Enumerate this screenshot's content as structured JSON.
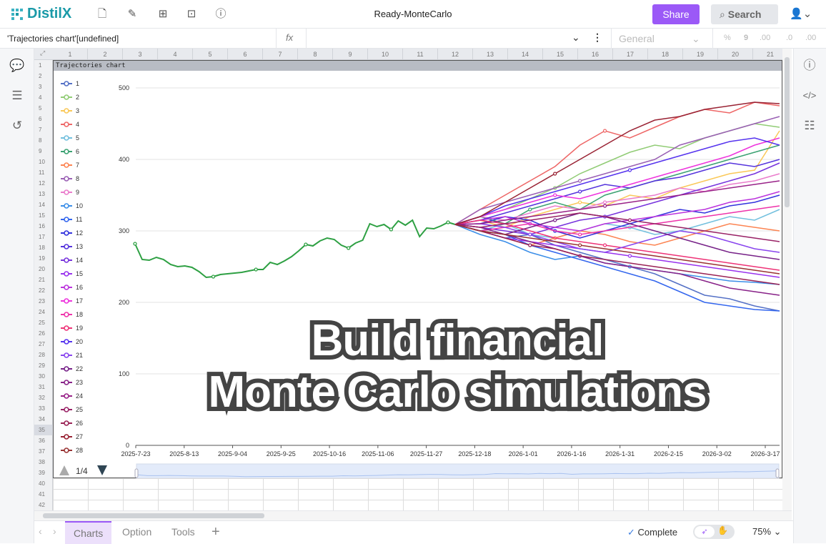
{
  "app": {
    "brand": "DistilX",
    "doc_title": "Ready-MonteCarlo",
    "share_label": "Share",
    "search_label": "Search"
  },
  "toolbar_icons": [
    "file-icon",
    "edit-icon",
    "layout-icon",
    "add-box-icon",
    "help-icon"
  ],
  "formula_bar": {
    "name_box": "'Trajectories chart'[undefined]",
    "fx_label": "fx",
    "formula": "",
    "format": "General",
    "number_buttons": [
      "%",
      "9",
      ".00",
      ".0",
      ".00"
    ]
  },
  "columns": [
    "1",
    "2",
    "3",
    "4",
    "5",
    "6",
    "7",
    "8",
    "9",
    "10",
    "11",
    "12",
    "13",
    "14",
    "15",
    "16",
    "17",
    "18",
    "19",
    "20",
    "21"
  ],
  "rows": [
    "1",
    "2",
    "3",
    "4",
    "5",
    "6",
    "7",
    "8",
    "9",
    "10",
    "11",
    "12",
    "13",
    "14",
    "15",
    "16",
    "17",
    "18",
    "19",
    "20",
    "21",
    "22",
    "23",
    "24",
    "25",
    "26",
    "27",
    "28",
    "29",
    "30",
    "31",
    "32",
    "33",
    "34",
    "35",
    "36",
    "37",
    "38",
    "39",
    "40",
    "41",
    "42"
  ],
  "selected_row": "35",
  "bottom": {
    "tabs": [
      "Charts",
      "Option",
      "Tools"
    ],
    "active_tab": "Charts",
    "add_label": "+",
    "status": "Complete",
    "zoom": "75%"
  },
  "overlay": {
    "line1": "Build financial",
    "line2": "Monte Carlo simulations"
  },
  "chart_data": {
    "type": "line",
    "title": "Trajectories chart",
    "ylim": [
      0,
      500
    ],
    "yticks": [
      0,
      100,
      200,
      300,
      400,
      500
    ],
    "grid": true,
    "legend_placement": "left",
    "legend_page": "1/4",
    "x_tick_labels": [
      "2025-7-23",
      "2025-8-13",
      "2025-9-04",
      "2025-9-25",
      "2025-10-16",
      "2025-11-06",
      "2025-11-27",
      "2025-12-18",
      "2026-1-01",
      "2026-1-16",
      "2026-1-31",
      "2026-2-15",
      "2026-3-02",
      "2026-3-17"
    ],
    "historical": {
      "color": "#2ea043",
      "values": [
        282,
        260,
        259,
        263,
        260,
        253,
        250,
        251,
        249,
        243,
        235,
        236,
        239,
        240,
        241,
        242,
        244,
        246,
        246,
        256,
        253,
        258,
        264,
        272,
        281,
        279,
        286,
        290,
        288,
        280,
        276,
        283,
        287,
        310,
        306,
        309,
        302,
        314,
        308,
        315,
        292,
        304,
        303,
        307,
        312,
        309
      ]
    },
    "series": [
      {
        "name": "1",
        "color": "#5470c6",
        "values": [
          309,
          300,
          290,
          295,
          280,
          270,
          260,
          250,
          240,
          225,
          210,
          205,
          195,
          188
        ]
      },
      {
        "name": "2",
        "color": "#91cc75",
        "values": [
          309,
          320,
          330,
          345,
          360,
          380,
          395,
          410,
          420,
          415,
          430,
          440,
          450,
          445
        ]
      },
      {
        "name": "3",
        "color": "#fac858",
        "values": [
          309,
          315,
          305,
          320,
          330,
          340,
          335,
          350,
          345,
          360,
          370,
          380,
          385,
          440
        ]
      },
      {
        "name": "4",
        "color": "#ee6666",
        "values": [
          309,
          330,
          350,
          370,
          390,
          420,
          440,
          430,
          445,
          460,
          470,
          465,
          480,
          475
        ]
      },
      {
        "name": "5",
        "color": "#73c0de",
        "values": [
          309,
          300,
          310,
          295,
          290,
          300,
          310,
          305,
          295,
          300,
          310,
          320,
          315,
          330
        ]
      },
      {
        "name": "6",
        "color": "#3ba272",
        "values": [
          309,
          320,
          310,
          330,
          340,
          330,
          350,
          360,
          370,
          380,
          390,
          400,
          410,
          420
        ]
      },
      {
        "name": "7",
        "color": "#fc8452",
        "values": [
          309,
          300,
          290,
          280,
          290,
          300,
          295,
          285,
          280,
          290,
          300,
          310,
          305,
          300
        ]
      },
      {
        "name": "8",
        "color": "#9a60b4",
        "values": [
          309,
          330,
          340,
          350,
          360,
          370,
          380,
          390,
          400,
          420,
          430,
          440,
          450,
          460
        ]
      },
      {
        "name": "9",
        "color": "#ea7ccc",
        "values": [
          309,
          320,
          315,
          325,
          335,
          330,
          340,
          345,
          350,
          360,
          355,
          365,
          370,
          380
        ]
      },
      {
        "name": "10",
        "color": "#3b8ee8",
        "values": [
          309,
          295,
          285,
          270,
          260,
          265,
          255,
          250,
          245,
          240,
          235,
          230,
          228,
          225
        ]
      },
      {
        "name": "11",
        "color": "#3366ee",
        "values": [
          309,
          300,
          295,
          280,
          270,
          260,
          250,
          240,
          230,
          215,
          200,
          195,
          190,
          188
        ]
      },
      {
        "name": "12",
        "color": "#3333dd",
        "values": [
          309,
          310,
          320,
          315,
          300,
          290,
          300,
          310,
          320,
          330,
          325,
          335,
          340,
          350
        ]
      },
      {
        "name": "13",
        "color": "#5533dd",
        "values": [
          309,
          315,
          325,
          335,
          345,
          355,
          365,
          360,
          370,
          375,
          385,
          395,
          390,
          400
        ]
      },
      {
        "name": "14",
        "color": "#7733dd",
        "values": [
          309,
          305,
          300,
          295,
          305,
          315,
          320,
          330,
          340,
          350,
          360,
          370,
          380,
          395
        ]
      },
      {
        "name": "15",
        "color": "#9933ee",
        "values": [
          309,
          300,
          290,
          285,
          280,
          275,
          270,
          265,
          260,
          255,
          250,
          245,
          240,
          235
        ]
      },
      {
        "name": "16",
        "color": "#bb33dd",
        "values": [
          309,
          315,
          320,
          310,
          305,
          300,
          310,
          315,
          320,
          325,
          330,
          340,
          345,
          355
        ]
      },
      {
        "name": "17",
        "color": "#ee33dd",
        "values": [
          309,
          320,
          330,
          340,
          350,
          345,
          355,
          365,
          375,
          385,
          395,
          405,
          420,
          430
        ]
      },
      {
        "name": "18",
        "color": "#ee33aa",
        "values": [
          309,
          300,
          305,
          310,
          300,
          295,
          300,
          305,
          310,
          315,
          320,
          325,
          330,
          335
        ]
      },
      {
        "name": "19",
        "color": "#ee3377",
        "values": [
          309,
          315,
          310,
          300,
          290,
          285,
          280,
          275,
          270,
          265,
          260,
          255,
          250,
          245
        ]
      },
      {
        "name": "20",
        "color": "#5533ee",
        "values": [
          309,
          320,
          335,
          345,
          355,
          365,
          375,
          385,
          395,
          405,
          415,
          425,
          430,
          420
        ]
      },
      {
        "name": "21",
        "color": "#8844ee",
        "values": [
          309,
          310,
          305,
          295,
          285,
          275,
          270,
          280,
          290,
          300,
          295,
          285,
          275,
          270
        ]
      },
      {
        "name": "22",
        "color": "#772288",
        "values": [
          309,
          300,
          295,
          305,
          315,
          325,
          320,
          310,
          300,
          290,
          280,
          270,
          265,
          260
        ]
      },
      {
        "name": "23",
        "color": "#882288",
        "values": [
          309,
          305,
          295,
          285,
          275,
          265,
          255,
          250,
          245,
          240,
          230,
          220,
          215,
          210
        ]
      },
      {
        "name": "24",
        "color": "#992288",
        "values": [
          309,
          310,
          315,
          320,
          325,
          330,
          335,
          340,
          345,
          350,
          355,
          360,
          365,
          370
        ]
      },
      {
        "name": "25",
        "color": "#992266",
        "values": [
          309,
          305,
          310,
          315,
          320,
          325,
          320,
          315,
          310,
          305,
          300,
          295,
          290,
          285
        ]
      },
      {
        "name": "26",
        "color": "#992255",
        "values": [
          309,
          300,
          290,
          280,
          275,
          265,
          260,
          255,
          250,
          245,
          240,
          235,
          230,
          225
        ]
      },
      {
        "name": "27",
        "color": "#992233",
        "values": [
          309,
          320,
          340,
          360,
          380,
          400,
          420,
          440,
          455,
          460,
          470,
          475,
          480,
          478
        ]
      },
      {
        "name": "28",
        "color": "#993333",
        "values": [
          309,
          300,
          295,
          290,
          285,
          280,
          275,
          270,
          265,
          260,
          255,
          250,
          245,
          240
        ]
      }
    ]
  }
}
